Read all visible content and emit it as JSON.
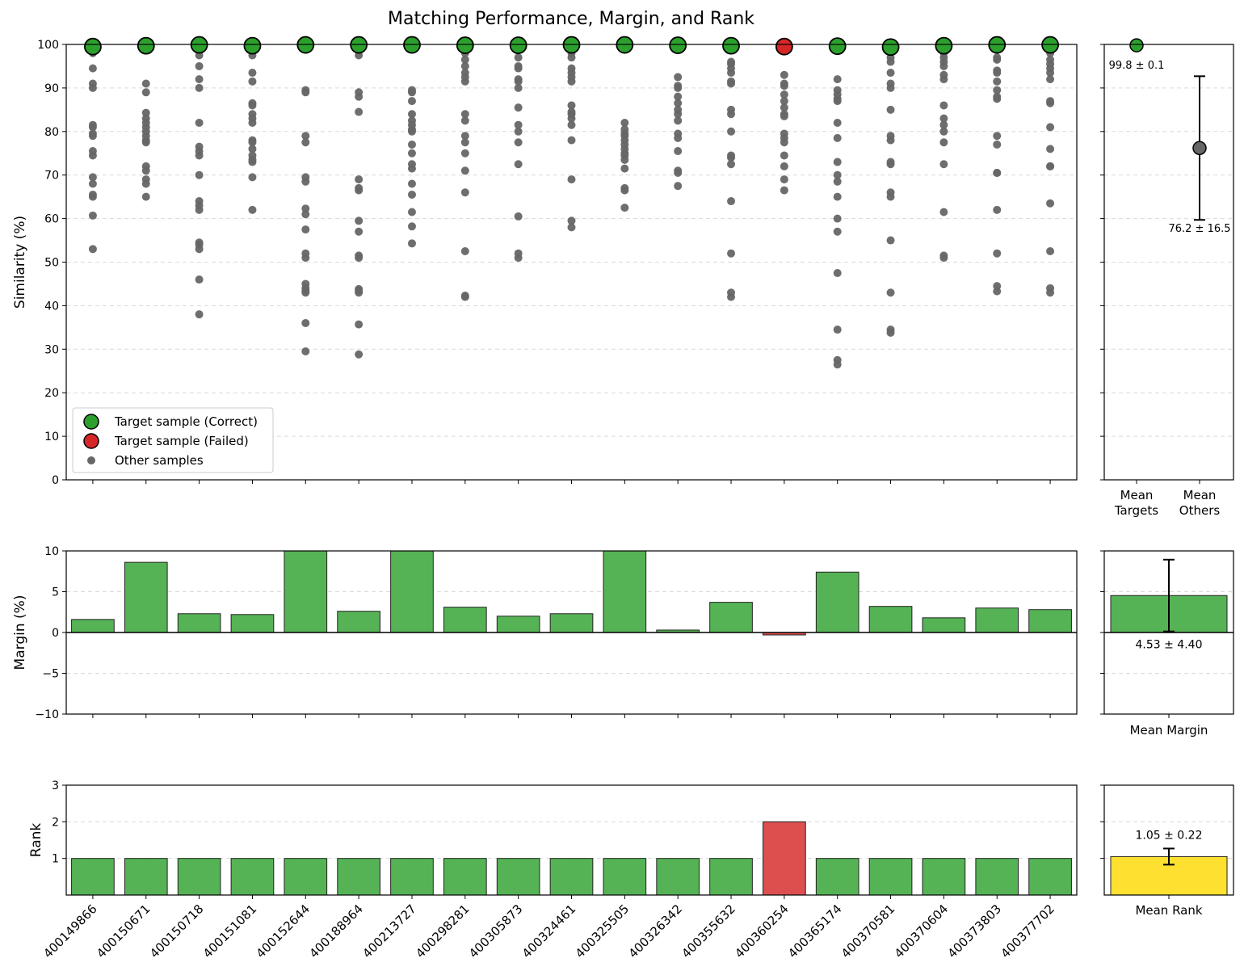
{
  "figure": {
    "title": "Matching Performance, Margin, and Rank"
  },
  "colors": {
    "correct": "#2ca02c",
    "failed": "#d62728",
    "other": "#666666",
    "bar_correct": "#55b355",
    "bar_failed": "#dd4f4f",
    "bar_mean_rank": "#fde030",
    "grid": "#d9d9d9"
  },
  "chart_data": [
    {
      "id": "similarity",
      "type": "scatter",
      "ylabel": "Similarity (%)",
      "ylim": [
        0,
        100
      ],
      "yticks": [
        0,
        10,
        20,
        30,
        40,
        50,
        60,
        70,
        80,
        90,
        100
      ],
      "grid": "y-dashed",
      "legend": {
        "placement": "lower-left",
        "entries": [
          "Target sample (Correct)",
          "Target sample (Failed)",
          "Other samples"
        ]
      },
      "categories": [
        "400149866",
        "400150671",
        "400150718",
        "400151081",
        "400152644",
        "400188964",
        "400213727",
        "400298281",
        "400305873",
        "400324461",
        "400325505",
        "400326342",
        "400355632",
        "400360254",
        "400365174",
        "400370581",
        "400370604",
        "400373803",
        "400377702"
      ],
      "targets": [
        99.5,
        99.7,
        99.9,
        99.7,
        99.9,
        99.9,
        99.9,
        99.8,
        99.8,
        99.9,
        99.9,
        99.8,
        99.7,
        99.5,
        99.6,
        99.4,
        99.7,
        99.9,
        99.9
      ],
      "target_status": [
        "correct",
        "correct",
        "correct",
        "correct",
        "correct",
        "correct",
        "correct",
        "correct",
        "correct",
        "correct",
        "correct",
        "correct",
        "correct",
        "failed",
        "correct",
        "correct",
        "correct",
        "correct",
        "correct"
      ],
      "others": [
        [
          98.0,
          94.5,
          91.0,
          90.0,
          81.5,
          81.0,
          79.5,
          79.0,
          75.5,
          74.5,
          69.5,
          68.0,
          65.5,
          65.0,
          60.7,
          53.0
        ],
        [
          91.0,
          89.0,
          84.3,
          83.0,
          82.0,
          81.0,
          80.0,
          79.0,
          78.0,
          77.5,
          72.0,
          71.0,
          69.0,
          68.0,
          65.0
        ],
        [
          97.5,
          95.0,
          92.0,
          90.0,
          82.0,
          76.5,
          75.5,
          74.5,
          70.0,
          64.0,
          63.0,
          62.0,
          54.5,
          54.0,
          53.0,
          46.0,
          38.0
        ],
        [
          97.5,
          93.5,
          91.5,
          86.5,
          86.0,
          84.0,
          83.0,
          82.0,
          78.0,
          77.5,
          76.0,
          74.5,
          73.5,
          73.0,
          69.5,
          62.0
        ],
        [
          89.5,
          89.0,
          79.0,
          77.5,
          69.5,
          68.5,
          62.3,
          61.0,
          57.5,
          52.0,
          51.0,
          45.0,
          44.0,
          43.5,
          43.0,
          36.0,
          29.5
        ],
        [
          97.5,
          89.0,
          88.0,
          84.5,
          69.0,
          67.0,
          66.5,
          59.5,
          57.0,
          51.5,
          51.0,
          43.8,
          43.5,
          43.0,
          35.7,
          28.8
        ],
        [
          89.5,
          89.0,
          87.0,
          84.0,
          82.5,
          81.5,
          80.5,
          80.0,
          77.0,
          75.0,
          72.5,
          71.5,
          68.0,
          65.5,
          61.5,
          58.2,
          54.3
        ],
        [
          98.0,
          96.5,
          95.0,
          93.5,
          92.5,
          91.5,
          84.0,
          82.5,
          79.0,
          77.5,
          75.0,
          71.0,
          66.0,
          52.5,
          42.3,
          42.0
        ],
        [
          99.0,
          97.0,
          95.0,
          94.5,
          92.0,
          91.5,
          90.0,
          85.5,
          81.5,
          80.0,
          77.5,
          72.5,
          60.5,
          52.0,
          51.0
        ],
        [
          98.0,
          97.0,
          94.5,
          93.5,
          92.5,
          91.5,
          86.0,
          84.5,
          84.0,
          83.0,
          81.5,
          78.0,
          69.0,
          59.5,
          58.0
        ],
        [
          82.0,
          80.5,
          79.5,
          79.0,
          78.0,
          77.0,
          76.0,
          75.0,
          74.5,
          73.5,
          71.5,
          67.0,
          66.5,
          62.5
        ],
        [
          92.5,
          90.5,
          90.0,
          88.0,
          86.5,
          85.0,
          84.0,
          82.5,
          79.5,
          78.5,
          75.5,
          71.0,
          70.5,
          67.5
        ],
        [
          96.0,
          95.5,
          94.5,
          93.5,
          91.5,
          91.0,
          85.0,
          84.0,
          80.0,
          74.5,
          74.0,
          72.5,
          64.0,
          52.0,
          43.0,
          42.0
        ],
        [
          93.0,
          91.0,
          90.5,
          88.5,
          87.0,
          85.5,
          84.0,
          83.5,
          79.5,
          78.5,
          77.5,
          74.5,
          72.0,
          69.0,
          66.5
        ],
        [
          92.0,
          89.5,
          88.5,
          87.5,
          87.0,
          82.0,
          78.5,
          73.0,
          70.0,
          68.5,
          65.0,
          60.0,
          57.0,
          47.5,
          34.5,
          27.5,
          26.5
        ],
        [
          97.0,
          96.0,
          93.5,
          91.0,
          90.0,
          85.0,
          79.0,
          78.0,
          73.0,
          72.5,
          66.0,
          65.0,
          55.0,
          43.0,
          34.5,
          33.8
        ],
        [
          98.0,
          97.0,
          96.0,
          95.0,
          93.0,
          92.0,
          86.0,
          83.0,
          81.5,
          80.0,
          77.5,
          72.5,
          61.5,
          51.5,
          51.0
        ],
        [
          97.0,
          96.5,
          94.0,
          93.5,
          91.5,
          89.5,
          88.0,
          87.5,
          79.0,
          77.0,
          70.5,
          70.5,
          62.0,
          52.0,
          44.5,
          43.3
        ],
        [
          98.0,
          96.5,
          95.5,
          94.5,
          93.5,
          92.0,
          87.0,
          86.5,
          81.0,
          76.0,
          72.0,
          72.0,
          63.5,
          52.5,
          44.0,
          43.0
        ]
      ]
    },
    {
      "id": "similarity-summary",
      "type": "scatter",
      "categories": [
        "Mean\nTargets",
        "Mean\nOthers"
      ],
      "values": [
        99.8,
        76.2
      ],
      "errors": [
        0.1,
        16.5
      ],
      "annotations": [
        "99.8 ± 0.1",
        "76.2 ± 16.5"
      ],
      "ylim": [
        0,
        100
      ]
    },
    {
      "id": "margin",
      "type": "bar",
      "ylabel": "Margin (%)",
      "ylim": [
        -10,
        10
      ],
      "yticks": [
        -10,
        -5,
        0,
        5,
        10
      ],
      "grid": "y-dashed",
      "categories": [
        "400149866",
        "400150671",
        "400150718",
        "400151081",
        "400152644",
        "400188964",
        "400213727",
        "400298281",
        "400305873",
        "400324461",
        "400325505",
        "400326342",
        "400355632",
        "400360254",
        "400365174",
        "400370581",
        "400370604",
        "400373803",
        "400377702"
      ],
      "values": [
        1.6,
        8.6,
        2.3,
        2.2,
        10.0,
        2.6,
        10.0,
        3.1,
        2.0,
        2.3,
        10.0,
        0.3,
        3.7,
        -0.3,
        7.4,
        3.2,
        1.8,
        3.0,
        2.8
      ]
    },
    {
      "id": "margin-summary",
      "type": "bar",
      "categories": [
        "Mean Margin"
      ],
      "values": [
        4.53
      ],
      "errors": [
        4.4
      ],
      "annotation": "4.53 ± 4.40",
      "ylim": [
        -10,
        10
      ]
    },
    {
      "id": "rank",
      "type": "bar",
      "ylabel": "Rank",
      "ylim": [
        0,
        3
      ],
      "yticks": [
        1,
        2,
        3
      ],
      "grid": "y-dashed",
      "categories": [
        "400149866",
        "400150671",
        "400150718",
        "400151081",
        "400152644",
        "400188964",
        "400213727",
        "400298281",
        "400305873",
        "400324461",
        "400325505",
        "400326342",
        "400355632",
        "400360254",
        "400365174",
        "400370581",
        "400370604",
        "400373803",
        "400377702"
      ],
      "values": [
        1,
        1,
        1,
        1,
        1,
        1,
        1,
        1,
        1,
        1,
        1,
        1,
        1,
        2,
        1,
        1,
        1,
        1,
        1
      ]
    },
    {
      "id": "rank-summary",
      "type": "bar",
      "categories": [
        "Mean Rank"
      ],
      "values": [
        1.05
      ],
      "errors": [
        0.22
      ],
      "annotation": "1.05 ± 0.22",
      "ylim": [
        0,
        3
      ]
    }
  ]
}
